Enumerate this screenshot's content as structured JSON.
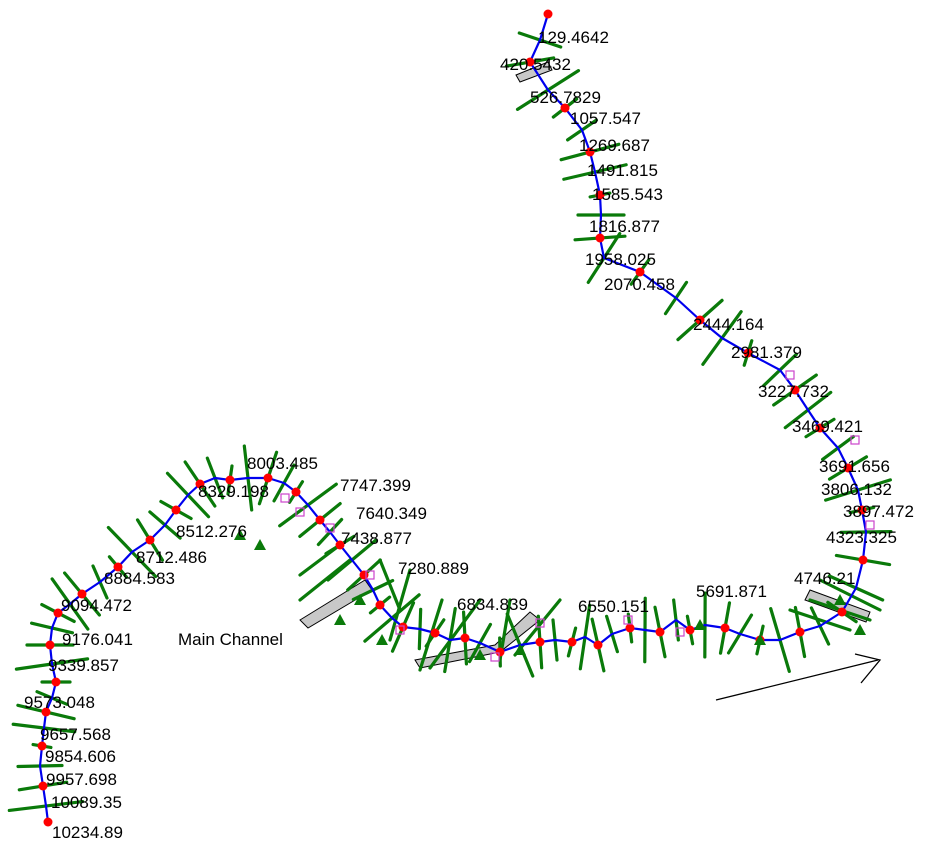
{
  "reach": {
    "label": "Main Channel"
  },
  "stations": [
    "129.4642",
    "420.5432",
    "526.7829",
    "1057.547",
    "1269.687",
    "1491.815",
    "1585.543",
    "1816.877",
    "1958.025",
    "2070.458",
    "2444.164",
    "2981.379",
    "3227.732",
    "3469.421",
    "3691.656",
    "3806.132",
    "3897.472",
    "4323.325",
    "4746.21",
    "5691.871",
    "6550.151",
    "6834.839",
    "7280.889",
    "7438.877",
    "7640.349",
    "7747.399",
    "8003.485",
    "8329.198",
    "8512.276",
    "8712.486",
    "8884.583",
    "9094.472",
    "9176.041",
    "9339.857",
    "9573.048",
    "9657.568",
    "9854.606",
    "9957.698",
    "10089.35",
    "10234.89"
  ],
  "colors": {
    "cross_section": "#0a7a0a",
    "channel": "#0000ee",
    "node": "#ff0000",
    "bank_marker": "#cc44cc",
    "levee_fill": "#c8c8c8",
    "text": "#000000",
    "arrow": "#000000"
  },
  "icons": {
    "flow_arrow": "flow-direction-arrow-icon"
  }
}
